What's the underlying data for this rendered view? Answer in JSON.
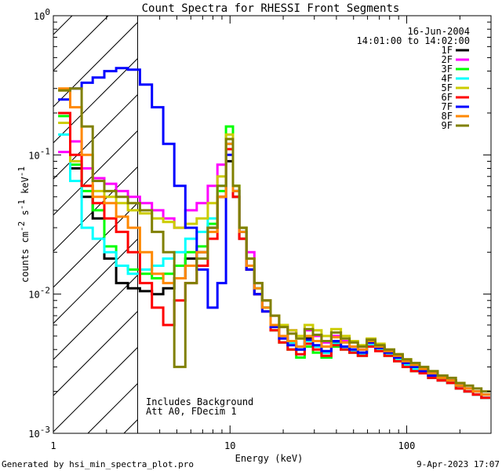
{
  "chart_data": {
    "type": "line",
    "title": "Count Spectra for RHESSI Front Segments",
    "xlabel": "Energy (keV)",
    "ylabel": "counts cm",
    "ylabel_sup1": "-2",
    "ylabel_mid": " s",
    "ylabel_sup2": "-1",
    "ylabel_mid2": " keV",
    "ylabel_sup3": "-1",
    "x_scale": "log",
    "y_scale": "log",
    "xlim": [
      1,
      300
    ],
    "ylim": [
      0.001,
      1
    ],
    "x_ticks": [
      {
        "value": 1,
        "label": "1"
      },
      {
        "value": 10,
        "label": "10"
      },
      {
        "value": 100,
        "label": "100"
      }
    ],
    "y_ticks": [
      {
        "value": 1,
        "base": "10",
        "exp": "0"
      },
      {
        "value": 0.1,
        "base": "10",
        "exp": "-1"
      },
      {
        "value": 0.01,
        "base": "10",
        "exp": "-2"
      },
      {
        "value": 0.001,
        "base": "10",
        "exp": "-3"
      }
    ],
    "attenuator_limit_kev": 3,
    "date": "16-Jun-2004",
    "time_range": "14:01:00 to 14:02:00",
    "annotation_line1": "Includes Background",
    "annotation_line2": "Att A0, FDecim 1",
    "footer_left": "Generated by hsi_min_spectra_plot.pro",
    "footer_right": "9-Apr-2023 17:07",
    "series": [
      {
        "name": "1F",
        "color": "#000000",
        "x": [
          1.15,
          1.35,
          1.55,
          1.8,
          2.1,
          2.45,
          2.85,
          3.35,
          3.9,
          4.5,
          5.2,
          6.0,
          7.0,
          8.0,
          9.0,
          10.0,
          10.8,
          11.8,
          13,
          14.5,
          16,
          18,
          20,
          22.5,
          25,
          28,
          31,
          35,
          40,
          45,
          50,
          56,
          63,
          70,
          80,
          90,
          100,
          112,
          125,
          140,
          160,
          180,
          200,
          225,
          250,
          280
        ],
        "values": [
          0.2,
          0.08,
          0.05,
          0.035,
          0.018,
          0.012,
          0.011,
          0.0105,
          0.01,
          0.011,
          0.013,
          0.018,
          0.02,
          0.03,
          0.05,
          0.09,
          0.05,
          0.025,
          0.015,
          0.01,
          0.008,
          0.006,
          0.005,
          0.0045,
          0.004,
          0.0048,
          0.0042,
          0.0038,
          0.0045,
          0.0042,
          0.004,
          0.0038,
          0.0045,
          0.0042,
          0.0038,
          0.0035,
          0.0032,
          0.003,
          0.0028,
          0.0026,
          0.0025,
          0.0024,
          0.0022,
          0.002,
          0.0019,
          0.0018
        ]
      },
      {
        "name": "2F",
        "color": "#ff00ff",
        "x": [
          1.15,
          1.35,
          1.55,
          1.8,
          2.1,
          2.45,
          2.85,
          3.35,
          3.9,
          4.5,
          5.2,
          6.0,
          7.0,
          8.0,
          9.0,
          10.0,
          10.8,
          11.8,
          13,
          14.5,
          16,
          18,
          20,
          22.5,
          25,
          28,
          31,
          35,
          40,
          45,
          50,
          56,
          63,
          70,
          80,
          90,
          100,
          112,
          125,
          140,
          160,
          180,
          200,
          225,
          250,
          280
        ],
        "values": [
          0.105,
          0.125,
          0.08,
          0.068,
          0.062,
          0.055,
          0.05,
          0.045,
          0.04,
          0.035,
          0.03,
          0.04,
          0.045,
          0.06,
          0.085,
          0.12,
          0.055,
          0.03,
          0.02,
          0.012,
          0.009,
          0.007,
          0.006,
          0.0055,
          0.005,
          0.0055,
          0.005,
          0.0045,
          0.005,
          0.0046,
          0.0042,
          0.004,
          0.0045,
          0.004,
          0.0037,
          0.0034,
          0.0031,
          0.0029,
          0.0027,
          0.0025,
          0.0024,
          0.0023,
          0.0021,
          0.002,
          0.0019,
          0.0018
        ]
      },
      {
        "name": "3F",
        "color": "#00ff00",
        "x": [
          1.15,
          1.35,
          1.55,
          1.8,
          2.1,
          2.45,
          2.85,
          3.35,
          3.9,
          4.5,
          5.2,
          6.0,
          7.0,
          8.0,
          9.0,
          10.0,
          10.8,
          11.8,
          13,
          14.5,
          16,
          18,
          20,
          22.5,
          25,
          28,
          31,
          35,
          40,
          45,
          50,
          56,
          63,
          70,
          80,
          90,
          100,
          112,
          125,
          140,
          160,
          180,
          200,
          225,
          250,
          280
        ],
        "values": [
          0.19,
          0.085,
          0.055,
          0.04,
          0.022,
          0.016,
          0.015,
          0.014,
          0.013,
          0.014,
          0.016,
          0.02,
          0.022,
          0.032,
          0.055,
          0.16,
          0.06,
          0.03,
          0.016,
          0.011,
          0.008,
          0.0055,
          0.0045,
          0.004,
          0.0035,
          0.0042,
          0.0038,
          0.0035,
          0.0042,
          0.004,
          0.0038,
          0.0036,
          0.0042,
          0.004,
          0.0036,
          0.0033,
          0.003,
          0.0028,
          0.0027,
          0.0025,
          0.0024,
          0.0023,
          0.0021,
          0.002,
          0.0019,
          0.0018
        ]
      },
      {
        "name": "4F",
        "color": "#00ffff",
        "x": [
          1.15,
          1.35,
          1.55,
          1.8,
          2.1,
          2.45,
          2.85,
          3.35,
          3.9,
          4.5,
          5.2,
          6.0,
          7.0,
          8.0,
          9.0,
          10.0,
          10.8,
          11.8,
          13,
          14.5,
          16,
          18,
          20,
          22.5,
          25,
          28,
          31,
          35,
          40,
          45,
          50,
          56,
          63,
          70,
          80,
          90,
          100,
          112,
          125,
          140,
          160,
          180,
          200,
          225,
          250,
          280
        ],
        "values": [
          0.14,
          0.065,
          0.03,
          0.025,
          0.02,
          0.016,
          0.014,
          0.015,
          0.016,
          0.018,
          0.02,
          0.025,
          0.028,
          0.035,
          0.06,
          0.12,
          0.055,
          0.028,
          0.016,
          0.011,
          0.008,
          0.006,
          0.005,
          0.0045,
          0.004,
          0.0046,
          0.0042,
          0.0038,
          0.0044,
          0.0041,
          0.0039,
          0.0037,
          0.0043,
          0.004,
          0.0037,
          0.0034,
          0.0031,
          0.0029,
          0.0027,
          0.0025,
          0.0024,
          0.0023,
          0.0021,
          0.002,
          0.0019,
          0.0018
        ]
      },
      {
        "name": "5F",
        "color": "#cccc00",
        "x": [
          1.15,
          1.35,
          1.55,
          1.8,
          2.1,
          2.45,
          2.85,
          3.35,
          3.9,
          4.5,
          5.2,
          6.0,
          7.0,
          8.0,
          9.0,
          10.0,
          10.8,
          11.8,
          13,
          14.5,
          16,
          18,
          20,
          22.5,
          25,
          28,
          31,
          35,
          40,
          45,
          50,
          56,
          63,
          70,
          80,
          90,
          100,
          112,
          125,
          140,
          160,
          180,
          200,
          225,
          250,
          280
        ],
        "values": [
          0.17,
          0.09,
          0.06,
          0.055,
          0.05,
          0.045,
          0.04,
          0.038,
          0.035,
          0.033,
          0.03,
          0.032,
          0.035,
          0.045,
          0.07,
          0.14,
          0.06,
          0.03,
          0.018,
          0.012,
          0.009,
          0.007,
          0.006,
          0.0055,
          0.005,
          0.006,
          0.0055,
          0.005,
          0.0056,
          0.005,
          0.0046,
          0.0043,
          0.0048,
          0.0044,
          0.004,
          0.0037,
          0.0034,
          0.0031,
          0.0029,
          0.0027,
          0.0025,
          0.0024,
          0.0022,
          0.0021,
          0.002,
          0.0019
        ]
      },
      {
        "name": "6F",
        "color": "#ff0000",
        "x": [
          1.15,
          1.35,
          1.55,
          1.8,
          2.1,
          2.45,
          2.85,
          3.35,
          3.9,
          4.5,
          5.2,
          6.0,
          7.0,
          8.0,
          9.0,
          10.0,
          10.8,
          11.8,
          13,
          14.5,
          16,
          18,
          20,
          22.5,
          25,
          28,
          31,
          35,
          40,
          45,
          50,
          56,
          63,
          70,
          80,
          90,
          100,
          112,
          125,
          140,
          160,
          180,
          200,
          225,
          250,
          280
        ],
        "values": [
          0.2,
          0.1,
          0.06,
          0.045,
          0.035,
          0.028,
          0.02,
          0.012,
          0.008,
          0.006,
          0.009,
          0.012,
          0.016,
          0.025,
          0.05,
          0.11,
          0.05,
          0.025,
          0.015,
          0.01,
          0.0075,
          0.0055,
          0.0045,
          0.004,
          0.0037,
          0.0044,
          0.004,
          0.0036,
          0.0043,
          0.004,
          0.0038,
          0.0036,
          0.0042,
          0.0039,
          0.0036,
          0.0033,
          0.003,
          0.0028,
          0.0027,
          0.0025,
          0.0024,
          0.0023,
          0.0021,
          0.002,
          0.0019,
          0.0018
        ]
      },
      {
        "name": "7F",
        "color": "#0000ff",
        "x": [
          1.15,
          1.35,
          1.55,
          1.8,
          2.1,
          2.45,
          2.85,
          3.35,
          3.9,
          4.5,
          5.2,
          6.0,
          7.0,
          8.0,
          9.0,
          10.0,
          10.8,
          11.8,
          13,
          14.5,
          16,
          18,
          20,
          22.5,
          25,
          28,
          31,
          35,
          40,
          45,
          50,
          56,
          63,
          70,
          80,
          90,
          100,
          112,
          125,
          140,
          160,
          180,
          200,
          225,
          250,
          280
        ],
        "values": [
          0.25,
          0.3,
          0.33,
          0.36,
          0.4,
          0.42,
          0.41,
          0.32,
          0.22,
          0.12,
          0.06,
          0.03,
          0.015,
          0.008,
          0.012,
          0.1,
          0.055,
          0.028,
          0.015,
          0.01,
          0.0075,
          0.0058,
          0.0048,
          0.0043,
          0.004,
          0.0047,
          0.0043,
          0.0039,
          0.0046,
          0.0042,
          0.004,
          0.0038,
          0.0045,
          0.0041,
          0.0038,
          0.0035,
          0.0032,
          0.003,
          0.0028,
          0.0026,
          0.0025,
          0.0024,
          0.0022,
          0.0021,
          0.002,
          0.0019
        ]
      },
      {
        "name": "8F",
        "color": "#ff8800",
        "x": [
          1.15,
          1.35,
          1.55,
          1.8,
          2.1,
          2.45,
          2.85,
          3.35,
          3.9,
          4.5,
          5.2,
          6.0,
          7.0,
          8.0,
          9.0,
          10.0,
          10.8,
          11.8,
          13,
          14.5,
          16,
          18,
          20,
          22.5,
          25,
          28,
          31,
          35,
          40,
          45,
          50,
          56,
          63,
          70,
          80,
          90,
          100,
          112,
          125,
          140,
          160,
          180,
          200,
          225,
          250,
          280
        ],
        "values": [
          0.3,
          0.22,
          0.1,
          0.05,
          0.045,
          0.036,
          0.03,
          0.02,
          0.014,
          0.012,
          0.013,
          0.016,
          0.02,
          0.028,
          0.05,
          0.12,
          0.055,
          0.028,
          0.016,
          0.011,
          0.008,
          0.006,
          0.005,
          0.0046,
          0.0042,
          0.005,
          0.0046,
          0.0042,
          0.0049,
          0.0045,
          0.0042,
          0.004,
          0.0046,
          0.0042,
          0.0039,
          0.0036,
          0.0033,
          0.0031,
          0.0029,
          0.0027,
          0.0025,
          0.0024,
          0.0022,
          0.0021,
          0.002,
          0.0019
        ]
      },
      {
        "name": "9F",
        "color": "#808000",
        "x": [
          1.15,
          1.35,
          1.55,
          1.8,
          2.1,
          2.45,
          2.85,
          3.35,
          3.9,
          4.5,
          5.2,
          6.0,
          7.0,
          8.0,
          9.0,
          10.0,
          10.8,
          11.8,
          13,
          14.5,
          16,
          18,
          20,
          22.5,
          25,
          28,
          31,
          35,
          40,
          45,
          50,
          56,
          63,
          70,
          80,
          90,
          100,
          112,
          125,
          140,
          160,
          180,
          200,
          225,
          250,
          280
        ],
        "values": [
          0.29,
          0.3,
          0.16,
          0.065,
          0.055,
          0.05,
          0.045,
          0.04,
          0.028,
          0.02,
          0.003,
          0.012,
          0.018,
          0.03,
          0.06,
          0.13,
          0.06,
          0.03,
          0.018,
          0.012,
          0.009,
          0.007,
          0.0058,
          0.0052,
          0.0048,
          0.0056,
          0.0051,
          0.0046,
          0.0053,
          0.0048,
          0.0045,
          0.0042,
          0.0047,
          0.0043,
          0.004,
          0.0037,
          0.0034,
          0.0032,
          0.003,
          0.0028,
          0.0026,
          0.0025,
          0.0023,
          0.0022,
          0.0021,
          0.002
        ]
      }
    ]
  }
}
